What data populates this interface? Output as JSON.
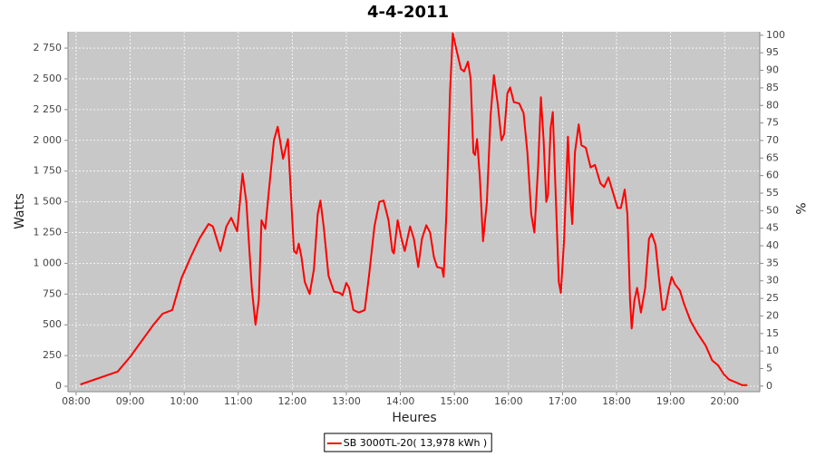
{
  "chart_data": {
    "type": "line",
    "title": "4-4-2011",
    "x_label": "Heures",
    "y_label": "Watts",
    "y2_label": "%",
    "x": [
      8.08,
      8.77,
      9.0,
      9.43,
      9.6,
      9.78,
      9.95,
      10.12,
      10.28,
      10.45,
      10.53,
      10.67,
      10.78,
      10.87,
      10.98,
      11.08,
      11.15,
      11.25,
      11.32,
      11.38,
      11.43,
      11.5,
      11.57,
      11.66,
      11.73,
      11.83,
      11.92,
      11.97,
      12.03,
      12.08,
      12.12,
      12.17,
      12.23,
      12.32,
      12.4,
      12.47,
      12.52,
      12.58,
      12.67,
      12.77,
      12.88,
      12.93,
      13.0,
      13.05,
      13.13,
      13.23,
      13.34,
      13.42,
      13.52,
      13.61,
      13.69,
      13.78,
      13.85,
      13.88,
      13.95,
      14.02,
      14.08,
      14.18,
      14.25,
      14.33,
      14.4,
      14.48,
      14.55,
      14.62,
      14.68,
      14.77,
      14.8,
      14.85,
      14.92,
      14.97,
      15.03,
      15.12,
      15.18,
      15.25,
      15.3,
      15.35,
      15.38,
      15.42,
      15.47,
      15.53,
      15.6,
      15.67,
      15.73,
      15.8,
      15.87,
      15.92,
      15.98,
      16.03,
      16.1,
      16.2,
      16.28,
      16.35,
      16.42,
      16.48,
      16.55,
      16.6,
      16.65,
      16.7,
      16.73,
      16.78,
      16.82,
      16.87,
      16.93,
      16.97,
      17.03,
      17.1,
      17.15,
      17.18,
      17.23,
      17.3,
      17.35,
      17.43,
      17.52,
      17.6,
      17.7,
      17.77,
      17.85,
      17.93,
      18.02,
      18.08,
      18.15,
      18.2,
      18.25,
      18.28,
      18.33,
      18.38,
      18.45,
      18.53,
      18.6,
      18.65,
      18.72,
      18.78,
      18.85,
      18.9,
      18.97,
      19.02,
      19.08,
      19.17,
      19.25,
      19.37,
      19.5,
      19.65,
      19.77,
      19.88,
      19.98,
      20.08,
      20.22,
      20.32,
      20.42
    ],
    "series": [
      {
        "name": "SB 3000TL-20( 13,978 kWh  )",
        "color": "#ff0000",
        "values": [
          15,
          120,
          240,
          500,
          590,
          620,
          880,
          1050,
          1200,
          1320,
          1300,
          1100,
          1300,
          1370,
          1260,
          1730,
          1500,
          800,
          500,
          700,
          1350,
          1280,
          1600,
          2000,
          2110,
          1850,
          2010,
          1600,
          1100,
          1080,
          1160,
          1050,
          850,
          750,
          950,
          1400,
          1510,
          1300,
          900,
          770,
          760,
          740,
          840,
          800,
          620,
          600,
          620,
          900,
          1300,
          1500,
          1510,
          1350,
          1100,
          1080,
          1350,
          1200,
          1100,
          1300,
          1200,
          970,
          1200,
          1310,
          1250,
          1050,
          970,
          960,
          890,
          1400,
          2400,
          2870,
          2750,
          2580,
          2560,
          2640,
          2500,
          1900,
          1880,
          2010,
          1700,
          1180,
          1500,
          2200,
          2530,
          2300,
          2000,
          2050,
          2380,
          2430,
          2310,
          2300,
          2220,
          1900,
          1400,
          1250,
          1800,
          2350,
          2000,
          1500,
          1550,
          2100,
          2230,
          1600,
          850,
          760,
          1200,
          2030,
          1500,
          1320,
          1900,
          2130,
          1960,
          1940,
          1780,
          1800,
          1650,
          1620,
          1700,
          1580,
          1450,
          1450,
          1600,
          1400,
          700,
          470,
          700,
          800,
          600,
          800,
          1200,
          1240,
          1150,
          900,
          620,
          630,
          800,
          890,
          830,
          780,
          670,
          530,
          430,
          330,
          210,
          170,
          100,
          55,
          30,
          10,
          10
        ]
      }
    ],
    "xlim": [
      7.85,
      20.65
    ],
    "xticks": [
      {
        "value": 8,
        "label": "08:00"
      },
      {
        "value": 9,
        "label": "09:00"
      },
      {
        "value": 10,
        "label": "10:00"
      },
      {
        "value": 11,
        "label": "11:00"
      },
      {
        "value": 12,
        "label": "12:00"
      },
      {
        "value": 13,
        "label": "13:00"
      },
      {
        "value": 14,
        "label": "14:00"
      },
      {
        "value": 15,
        "label": "15:00"
      },
      {
        "value": 16,
        "label": "16:00"
      },
      {
        "value": 17,
        "label": "17:00"
      },
      {
        "value": 18,
        "label": "18:00"
      },
      {
        "value": 19,
        "label": "19:00"
      },
      {
        "value": 20,
        "label": "20:00"
      }
    ],
    "ylim": [
      -44,
      2883
    ],
    "yticks": [
      0,
      250,
      500,
      750,
      {
        "value": 1000,
        "label": "1 000"
      },
      {
        "value": 1250,
        "label": "1 250"
      },
      {
        "value": 1500,
        "label": "1 500"
      },
      {
        "value": 1750,
        "label": "1 750"
      },
      {
        "value": 2000,
        "label": "2 000"
      },
      {
        "value": 2250,
        "label": "2 250"
      },
      {
        "value": 2500,
        "label": "2 500"
      },
      {
        "value": 2750,
        "label": "2 750"
      }
    ],
    "y2lim": [
      -1.6,
      101
    ],
    "y2ticks": [
      0,
      5,
      10,
      15,
      20,
      25,
      30,
      35,
      40,
      45,
      50,
      55,
      60,
      65,
      70,
      75,
      80,
      85,
      90,
      95,
      100
    ],
    "grid": true,
    "legend": "bottom",
    "background": "#c8c8c8"
  }
}
